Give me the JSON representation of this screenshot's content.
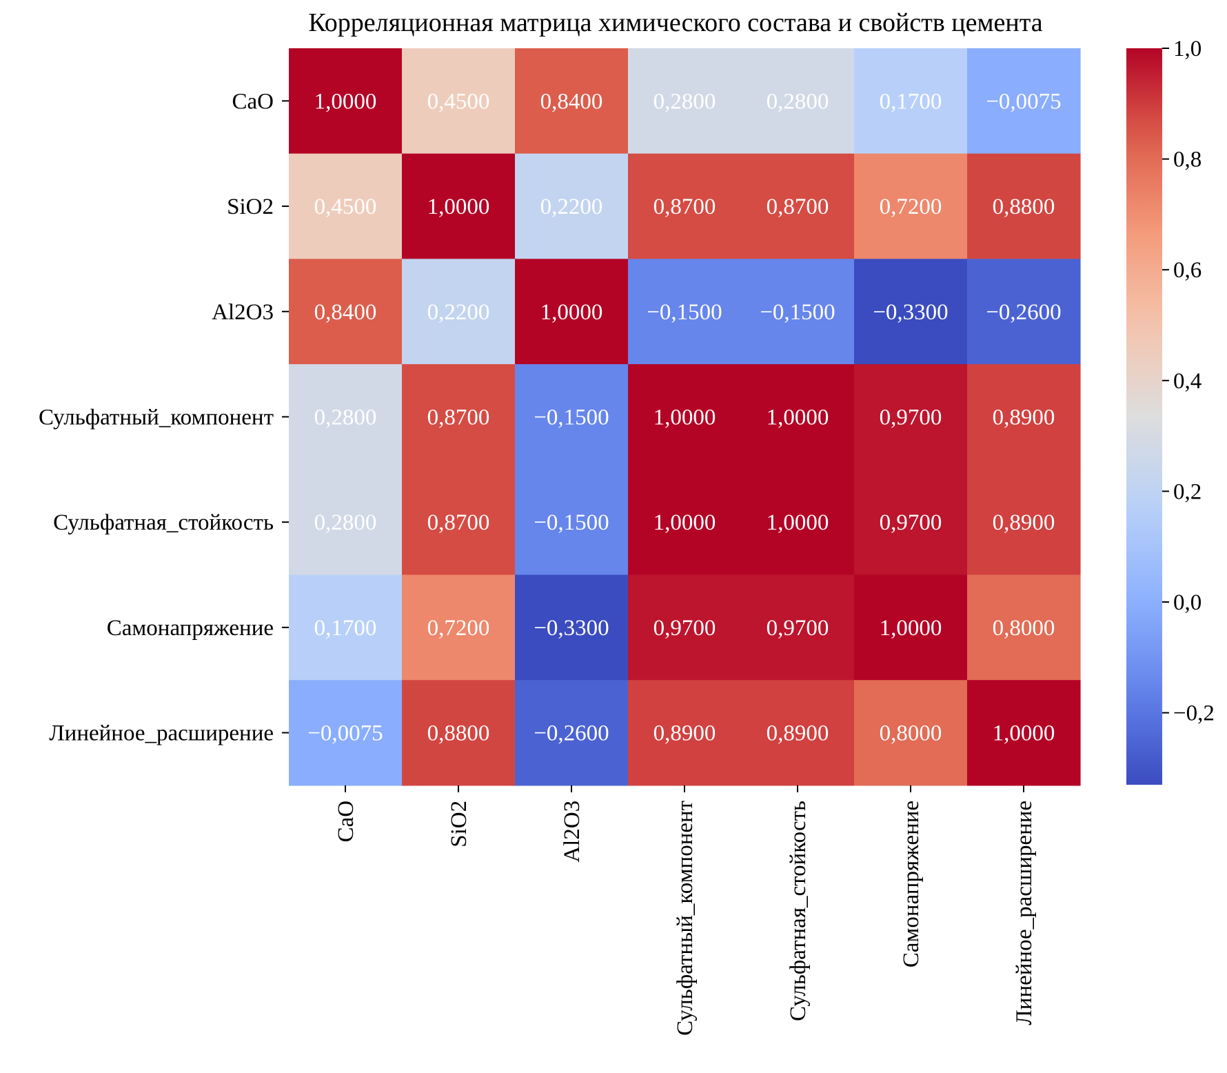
{
  "chart_data": {
    "type": "heatmap",
    "title": "Корреляционная матрица химического состава и свойств цемента",
    "variables": [
      "CaO",
      "SiO2",
      "Al2O3",
      "Сульфатный_компонент",
      "Сульфатная_стойкость",
      "Самонапряжение",
      "Линейное_расширение"
    ],
    "matrix": [
      [
        1.0,
        0.45,
        0.84,
        0.28,
        0.28,
        0.17,
        -0.0075
      ],
      [
        0.45,
        1.0,
        0.22,
        0.87,
        0.87,
        0.72,
        0.88
      ],
      [
        0.84,
        0.22,
        1.0,
        -0.15,
        -0.15,
        -0.33,
        -0.26
      ],
      [
        0.28,
        0.87,
        -0.15,
        1.0,
        1.0,
        0.97,
        0.89
      ],
      [
        0.28,
        0.87,
        -0.15,
        1.0,
        1.0,
        0.97,
        0.89
      ],
      [
        0.17,
        0.72,
        -0.33,
        0.97,
        0.97,
        1.0,
        0.8
      ],
      [
        -0.0075,
        0.88,
        -0.26,
        0.89,
        0.89,
        0.8,
        1.0
      ]
    ],
    "cell_labels": [
      [
        "1,0000",
        "0,4500",
        "0,8400",
        "0,2800",
        "0,2800",
        "0,1700",
        "−0,0075"
      ],
      [
        "0,4500",
        "1,0000",
        "0,2200",
        "0,8700",
        "0,8700",
        "0,7200",
        "0,8800"
      ],
      [
        "0,8400",
        "0,2200",
        "1,0000",
        "−0,1500",
        "−0,1500",
        "−0,3300",
        "−0,2600"
      ],
      [
        "0,2800",
        "0,8700",
        "−0,1500",
        "1,0000",
        "1,0000",
        "0,9700",
        "0,8900"
      ],
      [
        "0,2800",
        "0,8700",
        "−0,1500",
        "1,0000",
        "1,0000",
        "0,9700",
        "0,8900"
      ],
      [
        "0,1700",
        "0,7200",
        "−0,3300",
        "0,9700",
        "0,9700",
        "1,0000",
        "0,8000"
      ],
      [
        "−0,0075",
        "0,8800",
        "−0,2600",
        "0,8900",
        "0,8900",
        "0,8000",
        "1,0000"
      ]
    ],
    "colormap": "coolwarm",
    "vmin": -0.33,
    "vmax": 1.0,
    "colorbar": {
      "ticks": [
        1.0,
        0.8,
        0.6,
        0.4,
        0.2,
        0.0,
        -0.2
      ],
      "tick_labels": [
        "1,0",
        "0,8",
        "0,6",
        "0,4",
        "0,2",
        "0,0",
        "−0,2"
      ]
    },
    "grid": false,
    "legend": "colorbar-right"
  }
}
